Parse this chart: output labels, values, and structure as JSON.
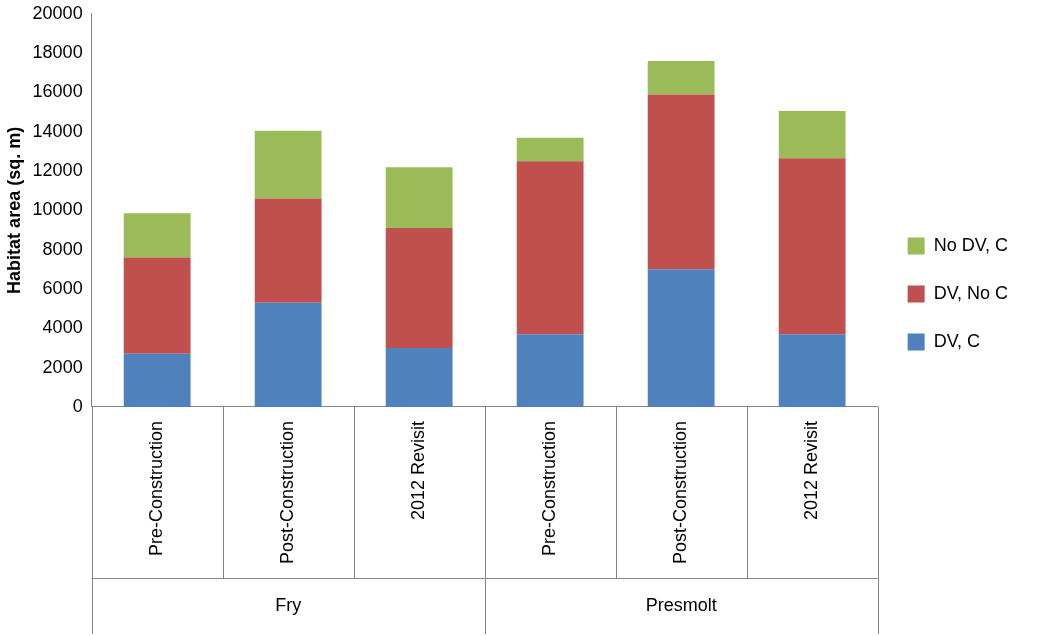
{
  "chart_data": {
    "type": "bar",
    "stacked": true,
    "ylabel": "Habitat area (sq. m)",
    "categories": [
      "Pre-Construction",
      "Post-Construction",
      "2012 Revisit",
      "Pre-Construction",
      "Post-Construction",
      "2012 Revisit"
    ],
    "series": [
      {
        "name": "DV, C",
        "color": "#4f81bd",
        "values": [
          2700,
          5300,
          3000,
          3700,
          7000,
          3700
        ]
      },
      {
        "name": "DV, No C",
        "color": "#c0504d",
        "values": [
          4900,
          5300,
          6100,
          8800,
          8900,
          8950
        ]
      },
      {
        "name": "No DV, C",
        "color": "#9bbb59",
        "values": [
          2250,
          3450,
          3100,
          1200,
          1700,
          2400
        ]
      }
    ],
    "ylim": [
      0,
      20000
    ],
    "yticks": [
      0,
      2000,
      4000,
      6000,
      8000,
      10000,
      12000,
      14000,
      16000,
      18000,
      20000
    ],
    "grid": false,
    "legend": "right",
    "annotations": [
      "Fry",
      "Presmolt"
    ]
  }
}
